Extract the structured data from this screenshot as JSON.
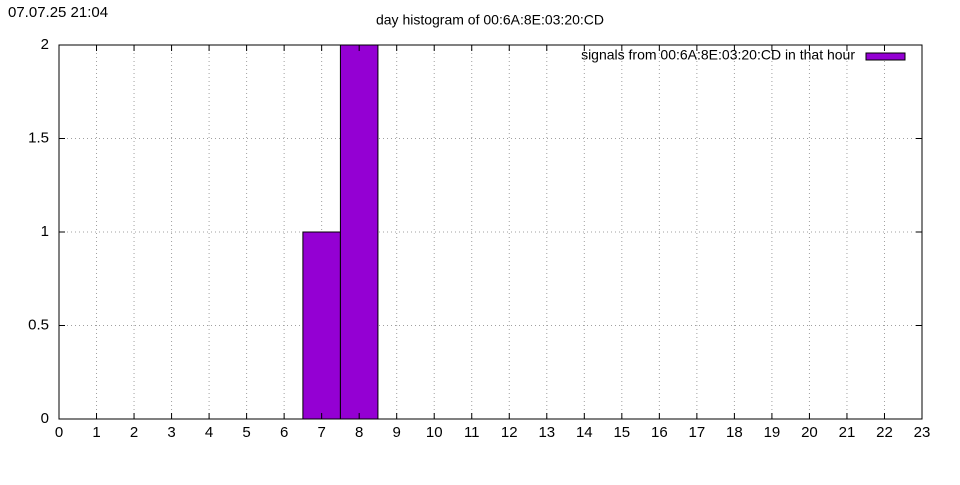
{
  "chart_data": {
    "type": "bar",
    "timestamp": "07.07.25 21:04",
    "title": "day histogram of 00:6A:8E:03:20:CD",
    "x": [
      0,
      1,
      2,
      3,
      4,
      5,
      6,
      7,
      8,
      9,
      10,
      11,
      12,
      13,
      14,
      15,
      16,
      17,
      18,
      19,
      20,
      21,
      22,
      23
    ],
    "series": [
      {
        "name": "signals from 00:6A:8E:03:20:CD in that hour",
        "color": "#9400d3",
        "values": [
          0,
          0,
          0,
          0,
          0,
          0,
          0,
          1,
          2,
          0,
          0,
          0,
          0,
          0,
          0,
          0,
          0,
          0,
          0,
          0,
          0,
          0,
          0,
          0
        ]
      }
    ],
    "xlim": [
      0,
      23
    ],
    "xticks": [
      0,
      1,
      2,
      3,
      4,
      5,
      6,
      7,
      8,
      9,
      10,
      11,
      12,
      13,
      14,
      15,
      16,
      17,
      18,
      19,
      20,
      21,
      22,
      23
    ],
    "ylim": [
      0,
      2
    ],
    "yticks": [
      0,
      0.5,
      1,
      1.5,
      2
    ],
    "grid": true,
    "legend": "top-right"
  }
}
